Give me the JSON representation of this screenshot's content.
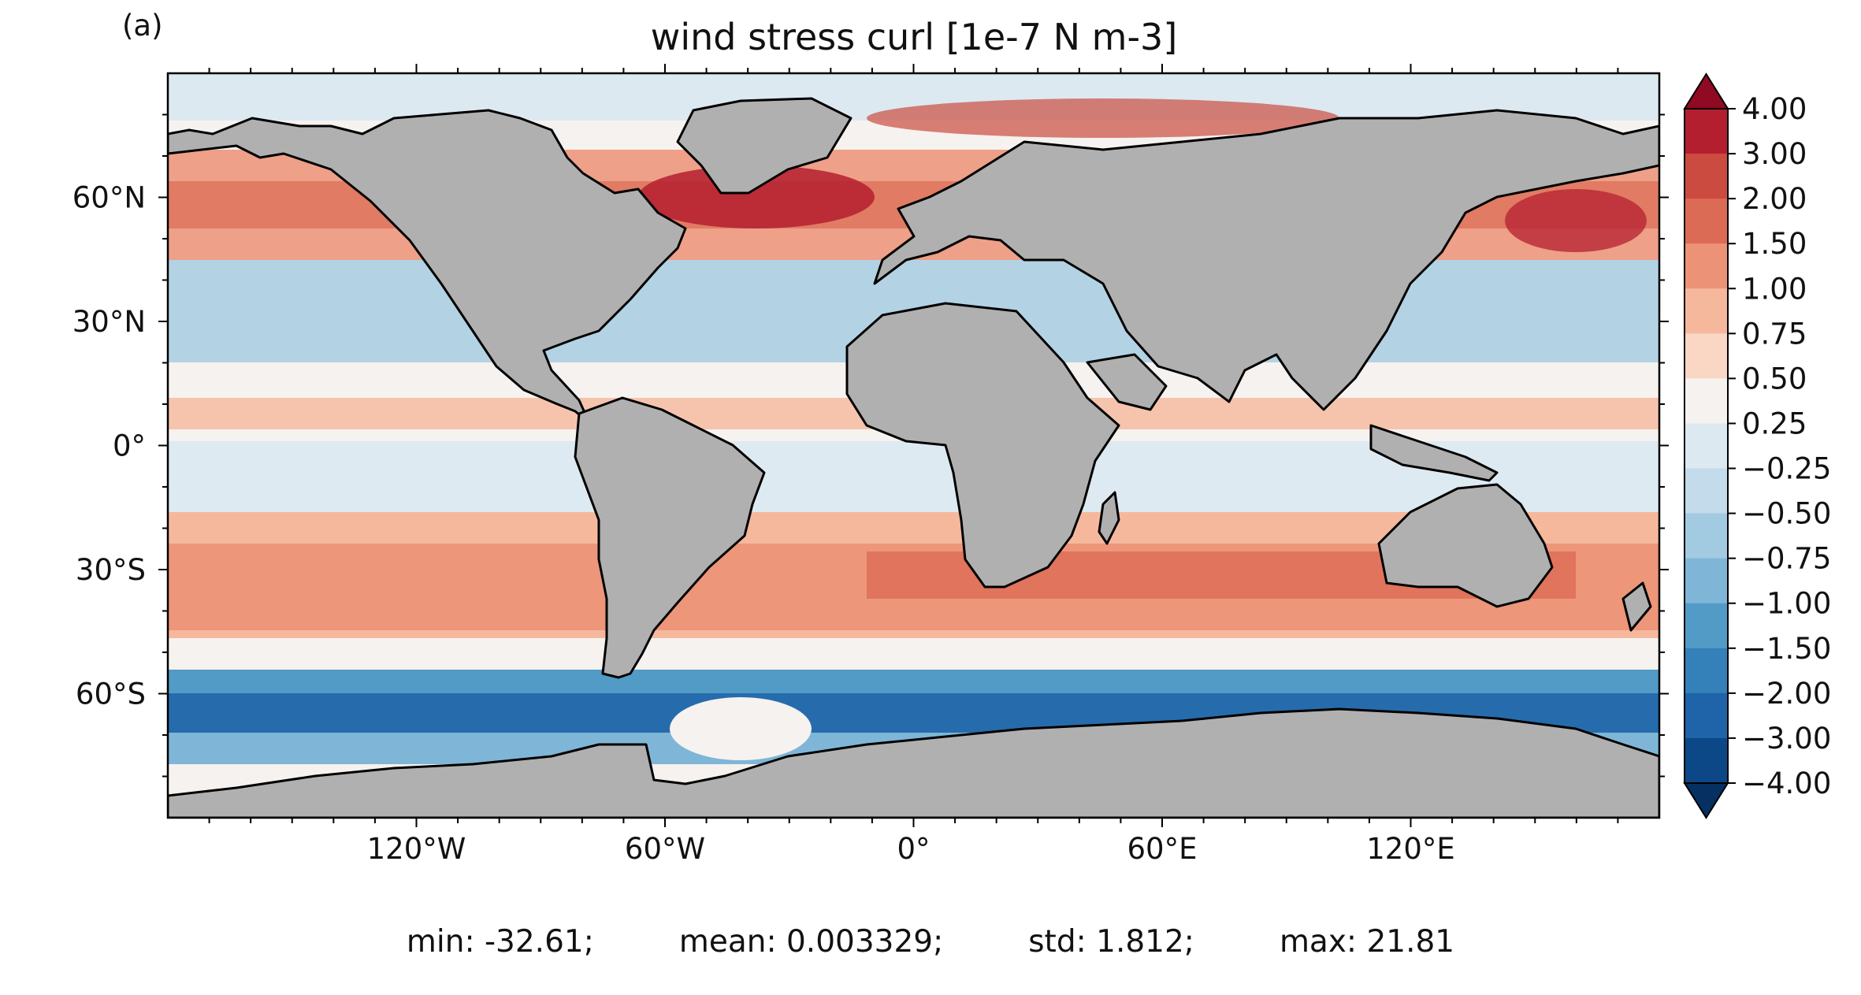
{
  "panel_label": "(a)",
  "title": "wind stress curl [1e-7 N m-3]",
  "map": {
    "projection": "PlateCarree",
    "lon_range": [
      -180,
      180
    ],
    "lat_range": [
      -90,
      90
    ],
    "land_color": "#b0b0b0",
    "coastline_color": "#000000",
    "x_ticks": [
      {
        "lon": -120,
        "label": "120°W"
      },
      {
        "lon": -60,
        "label": "60°W"
      },
      {
        "lon": 0,
        "label": "0°"
      },
      {
        "lon": 60,
        "label": "60°E"
      },
      {
        "lon": 120,
        "label": "120°E"
      }
    ],
    "y_ticks": [
      {
        "lat": 60,
        "label": "60°N"
      },
      {
        "lat": 30,
        "label": "30°N"
      },
      {
        "lat": 0,
        "label": "0°"
      },
      {
        "lat": -30,
        "label": "30°S"
      },
      {
        "lat": -60,
        "label": "60°S"
      }
    ]
  },
  "colorbar": {
    "colormap": "RdBu_r",
    "extend": "both",
    "levels": [
      "4.00",
      "3.00",
      "2.00",
      "1.50",
      "1.00",
      "0.75",
      "0.50",
      "0.25",
      "−0.25",
      "−0.50",
      "−0.75",
      "−1.00",
      "−1.50",
      "−2.00",
      "−3.00",
      "−4.00"
    ],
    "colors": [
      "#8f0a22",
      "#b41f2f",
      "#cc4b40",
      "#dc6b55",
      "#ec9276",
      "#f6b89c",
      "#fad7c5",
      "#f6f2ef",
      "#dce9f1",
      "#c3dbea",
      "#a2cae1",
      "#7fb6d7",
      "#529bc7",
      "#3480b9",
      "#1f64a8",
      "#0c4887",
      "#053061"
    ]
  },
  "stats": {
    "min": "min: -32.61;",
    "mean": "mean: 0.003329;",
    "std": "std: 1.812;",
    "max": "max: 21.81"
  }
}
